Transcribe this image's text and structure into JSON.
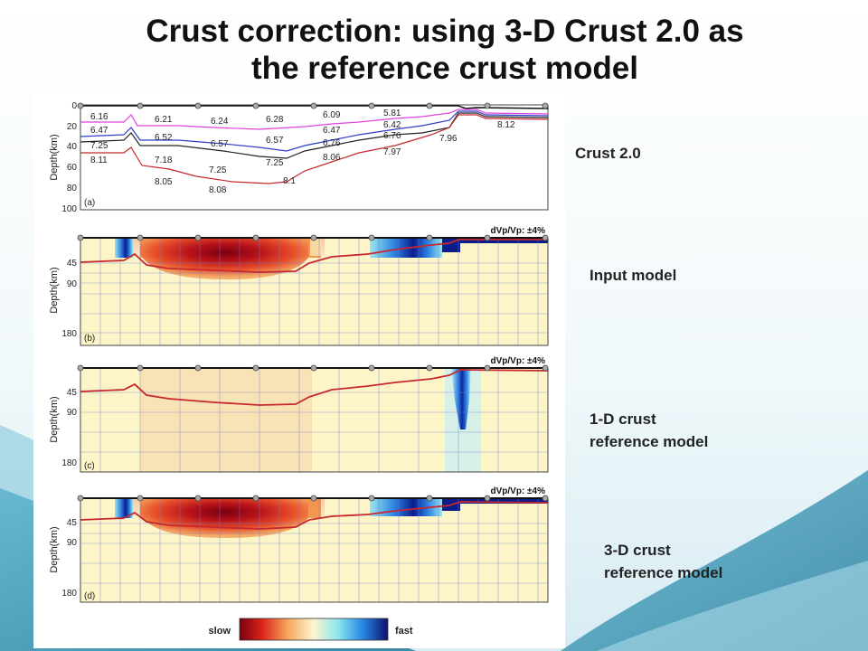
{
  "slide": {
    "title_line1": "Crust correction: using 3-D Crust 2.0 as",
    "title_line2": "the reference crust model"
  },
  "labels": {
    "crust": "Crust 2.0",
    "input": "Input model",
    "one_d": "1-D crust\nreference model",
    "three_d": "3-D crust\nreference model"
  },
  "panel_a": {
    "tag": "(a)",
    "axis_label": "Depth(km)",
    "ticks": [
      "0",
      "20",
      "40",
      "60",
      "80",
      "100"
    ],
    "velocities": [
      "6.16",
      "6.47",
      "7.25",
      "8.11",
      "6.21",
      "6.52",
      "7.18",
      "8.05",
      "6.24",
      "6.57",
      "7.25",
      "8.08",
      "6.28",
      "6.57",
      "7.25",
      "8.1",
      "6.09",
      "6.47",
      "6.76",
      "8.06",
      "5.81",
      "6.42",
      "6.76",
      "7.97",
      "7.96",
      "8.12"
    ]
  },
  "panel_b": {
    "tag": "(b)",
    "axis_label": "Depth(km)",
    "ticks": [
      "45",
      "90",
      "180"
    ],
    "scale": "dVp/Vp:  ±4%"
  },
  "panel_c": {
    "tag": "(c)",
    "axis_label": "Depth(km)",
    "ticks": [
      "45",
      "90",
      "180"
    ],
    "scale": "dVp/Vp:  ±4%"
  },
  "panel_d": {
    "tag": "(d)",
    "axis_label": "Depth(km)",
    "ticks": [
      "45",
      "90",
      "180"
    ],
    "scale": "dVp/Vp:  ±4%"
  },
  "colorbar": {
    "slow": "slow",
    "fast": "fast"
  },
  "colors": {
    "bg_teal": "#3f9bb8",
    "layer_pink": "#e040e0",
    "layer_blue": "#2b3fc4",
    "layer_black": "#222222",
    "layer_red": "#c6282e",
    "grid_blue": "#6a7fd8"
  }
}
